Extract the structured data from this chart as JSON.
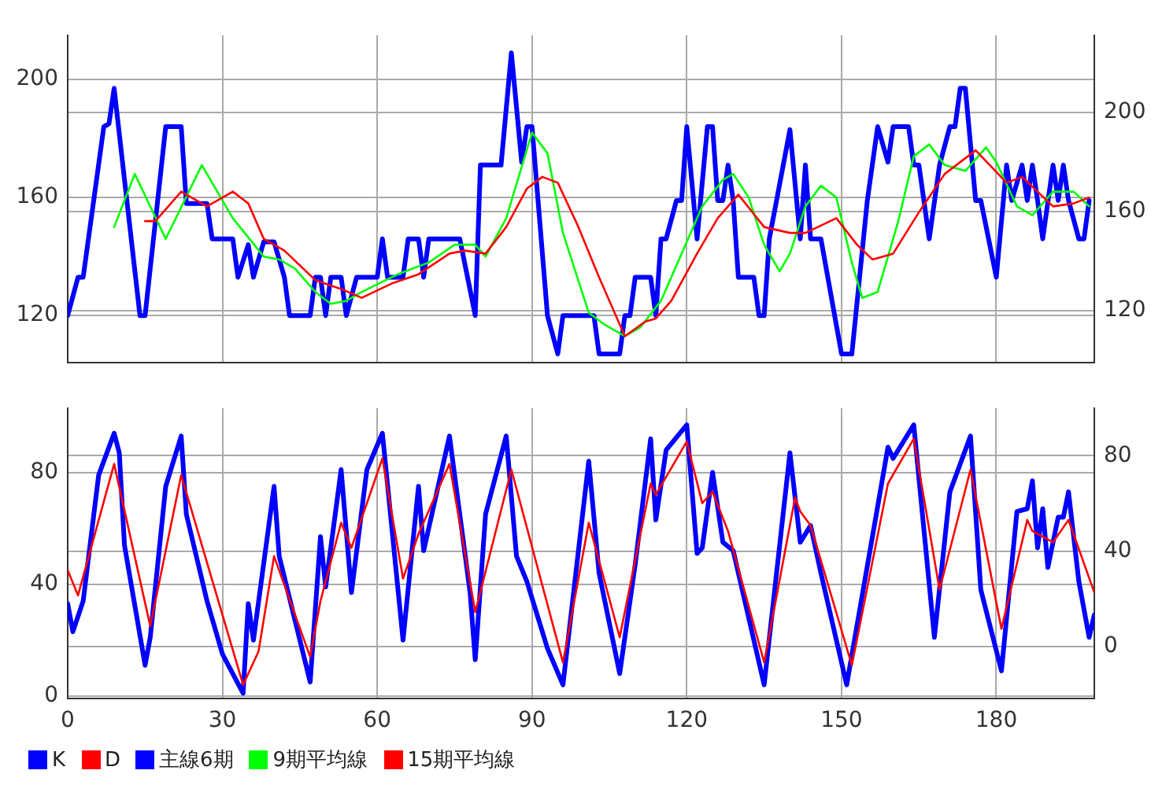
{
  "chart_data": [
    {
      "type": "line",
      "xlim": [
        0,
        199
      ],
      "xticks": [
        0,
        30,
        60,
        90,
        120,
        150,
        180
      ],
      "ylim": [
        104,
        215
      ],
      "yticks": [
        120,
        160,
        200
      ],
      "y2lim": [
        99,
        231
      ],
      "y2ticks": [
        120,
        160,
        200
      ],
      "grid": true,
      "legend": "bottom",
      "tick_labels": "y",
      "marker": "none",
      "series": [
        {
          "name": "主線6期",
          "color": "#0000ff",
          "x": [
            0,
            2,
            3,
            7,
            8,
            9,
            14,
            15,
            19,
            22,
            23,
            27,
            28,
            32,
            33,
            35,
            36,
            38,
            40,
            42,
            43,
            47,
            48,
            49,
            50,
            51,
            53,
            54,
            56,
            60,
            61,
            62,
            65,
            66,
            68,
            69,
            70,
            76,
            79,
            80,
            84,
            86,
            88,
            89,
            90,
            93,
            95,
            96,
            97,
            102,
            103,
            107,
            108,
            109,
            110,
            113,
            114,
            115,
            116,
            118,
            119,
            120,
            122,
            124,
            125,
            126,
            127,
            128,
            129,
            130,
            133,
            134,
            135,
            136,
            140,
            142,
            143,
            144,
            146,
            150,
            152,
            155,
            157,
            159,
            160,
            163,
            164,
            165,
            167,
            169,
            171,
            172,
            173,
            174,
            176,
            177,
            180,
            182,
            183,
            185,
            186,
            187,
            188,
            189,
            191,
            192,
            193,
            194,
            196,
            197,
            198
          ],
          "values": [
            120,
            133,
            133,
            184,
            185,
            197,
            120,
            120,
            184,
            184,
            158,
            158,
            146,
            146,
            133,
            144,
            133,
            145,
            145,
            133,
            120,
            120,
            133,
            133,
            120,
            133,
            133,
            120,
            133,
            133,
            146,
            133,
            133,
            146,
            146,
            133,
            146,
            146,
            120,
            171,
            171,
            209,
            172,
            184,
            184,
            120,
            107,
            120,
            120,
            120,
            107,
            107,
            120,
            120,
            133,
            133,
            120,
            146,
            146,
            159,
            159,
            184,
            146,
            184,
            184,
            159,
            159,
            171,
            159,
            133,
            133,
            120,
            120,
            146,
            183,
            146,
            171,
            146,
            146,
            107,
            107,
            159,
            184,
            172,
            184,
            184,
            171,
            171,
            146,
            171,
            184,
            184,
            197,
            197,
            159,
            159,
            133,
            171,
            159,
            171,
            159,
            171,
            159,
            146,
            171,
            159,
            171,
            159,
            146,
            146,
            159
          ]
        },
        {
          "name": "9期平均線",
          "color": "#00ff00",
          "x": [
            9,
            13,
            19,
            26,
            32,
            38,
            41,
            44,
            48,
            51,
            54,
            57,
            64,
            70,
            75,
            79,
            81,
            85,
            90,
            93,
            96,
            101,
            104,
            108,
            111,
            115,
            119,
            123,
            127,
            129,
            132,
            135,
            138,
            140,
            143,
            146,
            149,
            152,
            154,
            157,
            161,
            164,
            167,
            170,
            174,
            178,
            180,
            184,
            187,
            191,
            195,
            198
          ],
          "values": [
            150,
            168,
            146,
            171,
            153,
            140,
            139,
            136,
            128,
            124,
            125,
            128,
            134,
            138,
            144,
            144,
            140,
            153,
            182,
            175,
            148,
            121,
            117,
            113,
            116,
            125,
            141,
            157,
            166,
            168,
            160,
            144,
            135,
            141,
            157,
            164,
            160,
            138,
            126,
            128,
            152,
            174,
            178,
            171,
            169,
            177,
            172,
            157,
            154,
            162,
            162,
            157
          ]
        },
        {
          "name": "15期平均線",
          "color": "#ff0000",
          "x": [
            15,
            17,
            22,
            27,
            32,
            35,
            38,
            42,
            48,
            53,
            57,
            63,
            68,
            74,
            77,
            81,
            85,
            89,
            92,
            95,
            99,
            103,
            108,
            112,
            114,
            117,
            122,
            126,
            130,
            135,
            140,
            143,
            149,
            153,
            156,
            160,
            165,
            170,
            176,
            182,
            185,
            191,
            195,
            198
          ],
          "values": [
            152,
            152,
            162,
            157,
            162,
            158,
            146,
            142,
            132,
            129,
            126,
            131,
            134,
            141,
            142,
            141,
            150,
            163,
            167,
            165,
            150,
            133,
            113,
            118,
            119,
            125,
            141,
            153,
            161,
            150,
            148,
            148,
            153,
            144,
            139,
            141,
            155,
            168,
            176,
            165,
            167,
            157,
            158,
            160
          ]
        }
      ]
    },
    {
      "type": "line",
      "xlim": [
        0,
        199
      ],
      "xticks": [
        0,
        30,
        60,
        90,
        120,
        150,
        180
      ],
      "ylim": [
        -1,
        103
      ],
      "yticks": [
        0,
        40,
        80
      ],
      "y2lim": [
        -22,
        100
      ],
      "y2ticks": [
        0,
        40,
        80
      ],
      "grid": true,
      "legend": "bottom",
      "marker": "none",
      "series": [
        {
          "name": "K",
          "color": "#0000ff",
          "x": [
            0,
            1,
            3,
            6,
            9,
            10,
            11,
            15,
            16,
            19,
            22,
            23,
            27,
            30,
            34,
            35,
            36,
            40,
            41,
            47,
            49,
            50,
            53,
            55,
            58,
            61,
            65,
            68,
            69,
            74,
            78,
            79,
            81,
            85,
            87,
            89,
            93,
            96,
            101,
            103,
            107,
            110,
            113,
            114,
            116,
            120,
            122,
            123,
            125,
            127,
            129,
            135,
            140,
            142,
            144,
            146,
            151,
            159,
            160,
            164,
            168,
            171,
            175,
            177,
            181,
            184,
            186,
            187,
            188,
            189,
            190,
            192,
            193,
            194,
            196,
            198,
            199
          ],
          "values": [
            33,
            23,
            34,
            79,
            94,
            87,
            54,
            11,
            21,
            75,
            93,
            65,
            34,
            15,
            1,
            33,
            20,
            75,
            50,
            5,
            57,
            39,
            81,
            37,
            81,
            94,
            20,
            75,
            52,
            93,
            37,
            13,
            65,
            93,
            50,
            41,
            17,
            4,
            84,
            44,
            8,
            47,
            92,
            63,
            88,
            97,
            51,
            53,
            80,
            55,
            52,
            4,
            87,
            55,
            61,
            44,
            4,
            89,
            85,
            97,
            21,
            73,
            93,
            38,
            9,
            66,
            67,
            77,
            53,
            67,
            46,
            64,
            64,
            73,
            41,
            21,
            29
          ]
        },
        {
          "name": "D",
          "color": "#ff0000",
          "x": [
            0,
            2,
            9,
            16,
            22,
            34,
            37,
            40,
            47,
            49,
            53,
            55,
            61,
            65,
            68,
            74,
            79,
            86,
            96,
            101,
            107,
            113,
            114,
            120,
            123,
            125,
            128,
            135,
            141,
            142,
            144,
            152,
            159,
            164,
            169,
            175,
            181,
            186,
            187,
            191,
            194,
            199
          ],
          "values": [
            45,
            36,
            83,
            25,
            79,
            4,
            16,
            50,
            14,
            34,
            62,
            53,
            85,
            42,
            58,
            83,
            30,
            81,
            12,
            62,
            21,
            76,
            72,
            91,
            69,
            73,
            59,
            12,
            71,
            66,
            61,
            11,
            76,
            92,
            38,
            81,
            24,
            63,
            59,
            55,
            63,
            37
          ]
        }
      ]
    }
  ]
}
